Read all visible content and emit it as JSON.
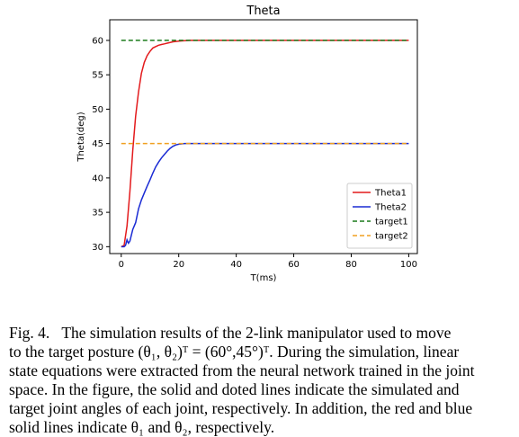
{
  "chart_data": {
    "type": "line",
    "title": "Theta",
    "xlabel": "T(ms)",
    "ylabel": "Theta(deg)",
    "xlim": [
      -4,
      103
    ],
    "ylim": [
      29,
      63
    ],
    "xticks": [
      "0",
      "20",
      "40",
      "60",
      "80",
      "100"
    ],
    "yticks": [
      "30",
      "35",
      "40",
      "45",
      "50",
      "55",
      "60"
    ],
    "grid": false,
    "legend_position": "bottom-right",
    "series": [
      {
        "name": "Theta1",
        "color": "#e31a1c",
        "dash": "solid",
        "x": [
          0,
          1,
          2,
          3,
          4,
          5,
          6,
          7,
          8,
          9,
          10,
          11,
          12,
          13,
          14,
          15,
          16,
          18,
          20,
          22,
          24,
          26,
          30,
          40,
          60,
          80,
          100
        ],
        "y": [
          30,
          30.2,
          33,
          38,
          44,
          49,
          52.5,
          55.2,
          56.8,
          57.8,
          58.4,
          58.9,
          59.1,
          59.3,
          59.4,
          59.5,
          59.6,
          59.8,
          59.9,
          59.95,
          60,
          60,
          60,
          60,
          60,
          60,
          60
        ]
      },
      {
        "name": "Theta2",
        "color": "#1a2bd4",
        "dash": "solid",
        "x": [
          0,
          1,
          1.5,
          2,
          2.5,
          3,
          4,
          5,
          6,
          7,
          8,
          9,
          10,
          11,
          12,
          13,
          14,
          15,
          16,
          17,
          18,
          19,
          20,
          21,
          22,
          24,
          30,
          40,
          60,
          80,
          100
        ],
        "y": [
          30,
          30,
          30.2,
          31,
          30.5,
          30.8,
          32.5,
          33.5,
          35.5,
          36.8,
          37.8,
          38.8,
          39.7,
          40.7,
          41.6,
          42.3,
          42.9,
          43.4,
          43.9,
          44.3,
          44.6,
          44.8,
          44.9,
          44.95,
          45,
          45,
          45,
          45,
          45,
          45,
          45
        ]
      },
      {
        "name": "target1",
        "color": "#1a7a1a",
        "dash": "dashed",
        "x": [
          0,
          100
        ],
        "y": [
          60,
          60
        ]
      },
      {
        "name": "target2",
        "color": "#f0a020",
        "dash": "dashed",
        "x": [
          0,
          100
        ],
        "y": [
          45,
          45
        ]
      }
    ]
  },
  "caption": {
    "lines": [
      "Fig. 4.   The simulation results of the 2-link manipulator used to move",
      "to the target posture (θ₁, θ₂)ᵀ = (60°,45°)ᵀ. During the simulation, linear",
      "state equations were extracted from the neural network trained in the joint",
      "space. In the figure, the solid and doted lines indicate the simulated and",
      "target joint angles of each joint, respectively. In addition, the red and blue",
      "solid lines indicate θ₁ and θ₂, respectively."
    ]
  }
}
